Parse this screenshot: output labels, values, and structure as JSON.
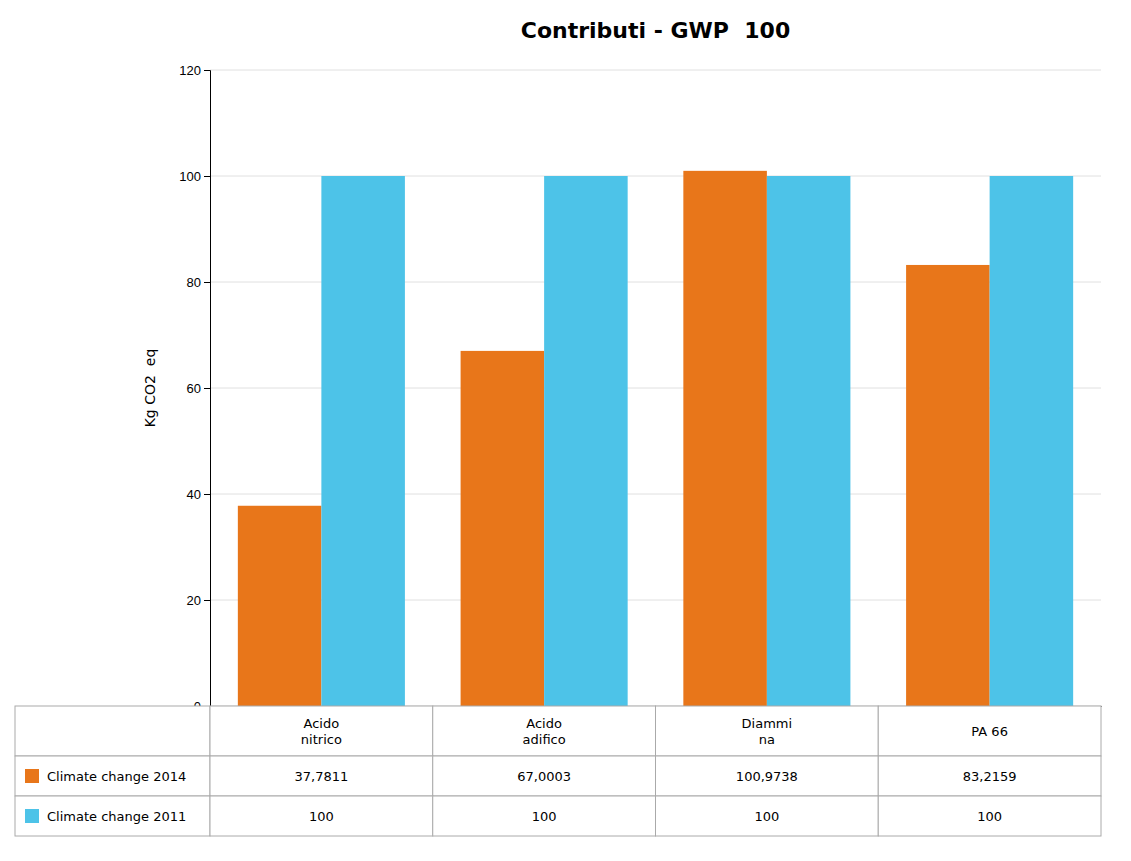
{
  "chart_data": {
    "type": "bar",
    "title": "Contributi - GWP  100",
    "categories": [
      "Acido\nnitrico",
      "Acido\nadifico",
      "Diammi\nna",
      "PA 66"
    ],
    "series": [
      {
        "name": "Climate change 2014",
        "color": "#E8761A",
        "values": [
          37.7811,
          67.0003,
          100.9738,
          83.2159
        ],
        "value_labels": [
          "37,7811",
          "67,0003",
          "100,9738",
          "83,2159"
        ]
      },
      {
        "name": "Climate change 2011",
        "color": "#4DC3E8",
        "values": [
          100.0,
          100.0,
          100.0,
          100.0
        ],
        "value_labels": [
          "100",
          "100",
          "100",
          "100"
        ]
      }
    ],
    "ylabel": "Kg CO2  eq",
    "ylim": [
      0,
      120
    ],
    "yticks": [
      0,
      20,
      40,
      60,
      80,
      100,
      120
    ],
    "grid": true
  }
}
